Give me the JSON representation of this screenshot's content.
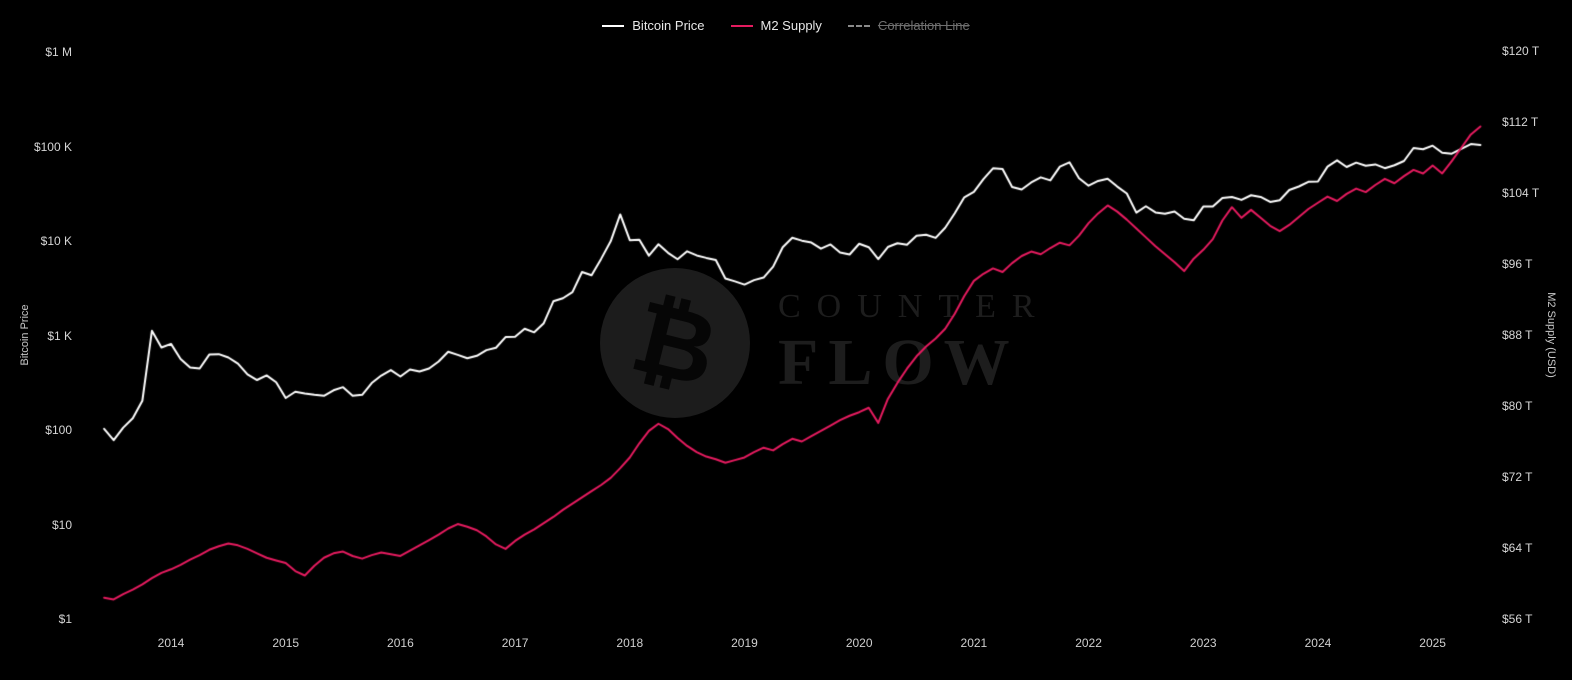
{
  "watermark": {
    "symbol": "₿",
    "line1": "COUNTER",
    "line2": "FLOW"
  },
  "chart_data": {
    "type": "line",
    "title": "",
    "background": "#000000",
    "xlim": [
      2013.25,
      2025.5
    ],
    "x_start": 2013.4167,
    "x_step": 0.083333,
    "x_ticks": [
      2014,
      2015,
      2016,
      2017,
      2018,
      2019,
      2020,
      2021,
      2022,
      2023,
      2024,
      2025
    ],
    "left_axis": {
      "label": "Bitcoin Price",
      "scale": "log",
      "lim": [
        1,
        1000000
      ],
      "ticks": [
        {
          "value": 1000000,
          "label": "$1 M"
        },
        {
          "value": 100000,
          "label": "$100 K"
        },
        {
          "value": 10000,
          "label": "$10 K"
        },
        {
          "value": 1000,
          "label": "$1 K"
        },
        {
          "value": 100,
          "label": "$100"
        },
        {
          "value": 10,
          "label": "$10"
        },
        {
          "value": 1,
          "label": "$1"
        }
      ]
    },
    "right_axis": {
      "label": "M2 Supply (USD)",
      "scale": "linear",
      "lim": [
        56,
        120
      ],
      "ticks": [
        {
          "value": 120,
          "label": "$120 T"
        },
        {
          "value": 112,
          "label": "$112 T"
        },
        {
          "value": 104,
          "label": "$104 T"
        },
        {
          "value": 96,
          "label": "$96 T"
        },
        {
          "value": 88,
          "label": "$88 T"
        },
        {
          "value": 80,
          "label": "$80 T"
        },
        {
          "value": 72,
          "label": "$72 T"
        },
        {
          "value": 64,
          "label": "$64 T"
        },
        {
          "value": 56,
          "label": "$56 T"
        }
      ]
    },
    "legend": {
      "position": "top",
      "items": [
        {
          "label": "Bitcoin Price",
          "color": "#ffffff",
          "dashed": false,
          "disabled": false
        },
        {
          "label": "M2 Supply",
          "color": "#e51b5f",
          "dashed": false,
          "disabled": false
        },
        {
          "label": "Correlation Line",
          "color": "#8a8a8a",
          "dashed": true,
          "disabled": true
        }
      ]
    },
    "series": [
      {
        "name": "Bitcoin Price",
        "axis": "left",
        "color": "#ffffff",
        "width": 2,
        "values": [
          103,
          78,
          106,
          133,
          204,
          1120,
          746,
          815,
          565,
          458,
          447,
          628,
          635,
          585,
          505,
          388,
          338,
          378,
          320,
          218,
          254,
          244,
          236,
          230,
          263,
          284,
          230,
          236,
          314,
          377,
          430,
          368,
          437,
          416,
          448,
          531,
          673,
          624,
          575,
          610,
          700,
          742,
          963,
          970,
          1180,
          1080,
          1350,
          2300,
          2480,
          2875,
          4703,
          4338,
          6468,
          9916,
          19100,
          10200,
          10300,
          7000,
          9240,
          7500,
          6404,
          7780,
          7033,
          6625,
          6300,
          4017,
          3742,
          3457,
          3854,
          4105,
          5350,
          8574,
          10817,
          10085,
          9630,
          8293,
          9199,
          7569,
          7193,
          9350,
          8599,
          6438,
          8629,
          9454,
          9137,
          11351,
          11655,
          10784,
          13797,
          19698,
          28994,
          33114,
          45240,
          58800,
          57750,
          37332,
          35040,
          41626,
          47166,
          43790,
          61320,
          68000,
          46217,
          38483,
          43194,
          45539,
          37650,
          31792,
          19985,
          23303,
          20050,
          19432,
          20490,
          17168,
          16548,
          23140,
          23150,
          28478,
          29253,
          27220,
          30477,
          29230,
          25932,
          26968,
          34656,
          37719,
          42265,
          42580,
          61200,
          71333,
          60637,
          67500,
          62678,
          64620,
          58970,
          63330,
          70215,
          96450,
          93430,
          102000,
          86000,
          84000,
          94500,
          106000,
          104000
        ]
      },
      {
        "name": "M2 Supply",
        "axis": "right",
        "color": "#e51b5f",
        "width": 2,
        "values": [
          58.4,
          58.2,
          58.8,
          59.3,
          59.9,
          60.6,
          61.2,
          61.6,
          62.1,
          62.7,
          63.2,
          63.8,
          64.2,
          64.5,
          64.3,
          63.9,
          63.4,
          62.9,
          62.6,
          62.3,
          61.4,
          60.9,
          62.0,
          62.9,
          63.4,
          63.6,
          63.1,
          62.8,
          63.2,
          63.5,
          63.3,
          63.1,
          63.7,
          64.3,
          64.9,
          65.5,
          66.2,
          66.7,
          66.4,
          66.0,
          65.3,
          64.4,
          63.9,
          64.8,
          65.5,
          66.1,
          66.8,
          67.5,
          68.3,
          69.0,
          69.7,
          70.4,
          71.1,
          71.9,
          73.0,
          74.2,
          75.8,
          77.2,
          78.0,
          77.4,
          76.4,
          75.5,
          74.8,
          74.3,
          74.0,
          73.6,
          73.9,
          74.2,
          74.8,
          75.3,
          75.0,
          75.7,
          76.3,
          76.0,
          76.6,
          77.2,
          77.8,
          78.4,
          78.9,
          79.3,
          79.8,
          78.1,
          80.8,
          82.6,
          84.2,
          85.6,
          86.7,
          87.6,
          88.7,
          90.4,
          92.4,
          94.1,
          94.9,
          95.5,
          95.1,
          96.1,
          96.9,
          97.4,
          97.1,
          97.8,
          98.4,
          98.1,
          99.2,
          100.6,
          101.7,
          102.6,
          101.9,
          101.0,
          100.0,
          99.0,
          98.0,
          97.1,
          96.2,
          95.2,
          96.6,
          97.6,
          98.8,
          100.9,
          102.4,
          101.2,
          102.1,
          101.2,
          100.3,
          99.7,
          100.4,
          101.3,
          102.2,
          102.9,
          103.6,
          103.1,
          103.9,
          104.5,
          104.1,
          104.9,
          105.6,
          105.1,
          105.9,
          106.6,
          106.2,
          107.1,
          106.2,
          107.6,
          109.1,
          110.6,
          111.5
        ]
      },
      {
        "name": "Correlation Line",
        "axis": "left",
        "color": "#8a8a8a",
        "width": 2,
        "dashed": true,
        "visible": false,
        "values": []
      }
    ]
  }
}
